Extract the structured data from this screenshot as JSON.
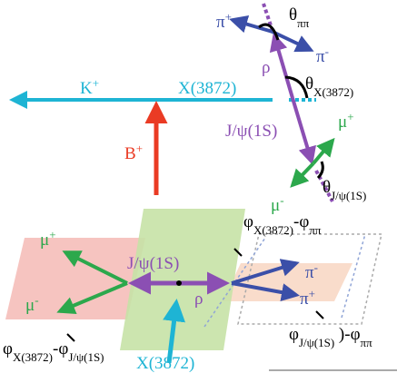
{
  "top": {
    "pi_plus": [
      "π",
      "+"
    ],
    "theta_pipi": [
      "θ",
      "ππ"
    ],
    "pi_minus": [
      "π",
      "-"
    ],
    "rho": "ρ",
    "theta_x": [
      "θ",
      "X(3872)"
    ],
    "k_plus": [
      "K",
      "+"
    ],
    "x3872": "X(3872)",
    "jpsi": "J/ψ(1S)",
    "mu_plus": [
      "μ",
      "+"
    ],
    "b_plus": [
      "B",
      "+"
    ],
    "theta_jpsi": [
      "θ",
      "J/ψ(1S)"
    ],
    "mu_minus": [
      "μ",
      "-"
    ]
  },
  "bottom": {
    "phi_x_pipi": [
      "φ",
      "X(3872)",
      "-φ",
      "ππ"
    ],
    "mu_plus": [
      "μ",
      "+"
    ],
    "jpsi": "J/ψ(1S)",
    "pi_minus": [
      "π",
      "-"
    ],
    "mu_minus": [
      "μ",
      "-"
    ],
    "rho": "ρ",
    "pi_plus": [
      "π",
      "+"
    ],
    "phi_jpsi_pipi": [
      "φ",
      "J/ψ(1S)",
      " )-φ",
      "ππ"
    ],
    "phi_x_jpsi": [
      "φ",
      "X(3872)",
      "-φ",
      "J/ψ(1S)"
    ],
    "x3872": "X(3872)"
  }
}
